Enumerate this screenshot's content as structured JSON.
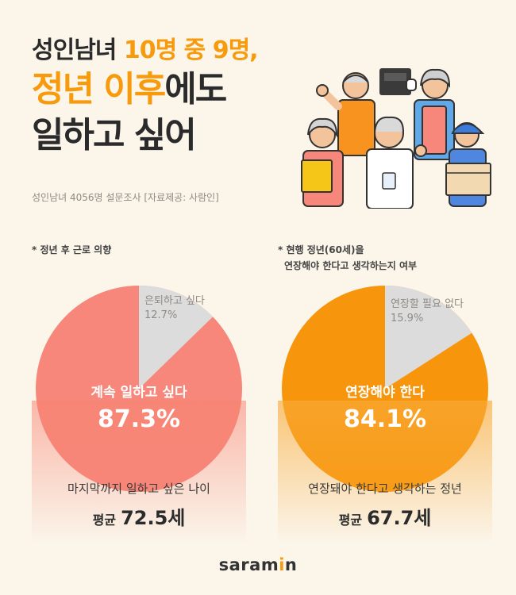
{
  "headline": {
    "line1_a": "성인남녀 ",
    "line1_b": "10명 중 9명,",
    "line2_a": "정년 ",
    "line2_b": "이후",
    "line2_c": "에도",
    "line3": "일하고 싶어"
  },
  "survey_note": "성인남녀 4056명 설문조사  [자료제공: 사람인]",
  "footer_logo": {
    "pre": "saram",
    "dot": "i",
    "post": "n"
  },
  "chart_data": [
    {
      "type": "pie",
      "title": "* 정년 후 근로 의향",
      "slices": [
        {
          "label": "계속 일하고 싶다",
          "value": 87.3,
          "display": "87.3%",
          "color": "#f7877a"
        },
        {
          "label": "은퇴하고 싶다",
          "value": 12.7,
          "display": "12.7%",
          "color": "#dcdcdc"
        }
      ],
      "footer_label": "마지막까지 일하고 싶은 나이",
      "footer_avg_label": "평균",
      "footer_avg_value": "72.5세"
    },
    {
      "type": "pie",
      "title_line1": "* 현행 정년(60세)을",
      "title_line2": "연장해야 한다고 생각하는지 여부",
      "slices": [
        {
          "label": "연장해야 한다",
          "value": 84.1,
          "display": "84.1%",
          "color": "#f7960d"
        },
        {
          "label": "연장할 필요 없다",
          "value": 15.9,
          "display": "15.9%",
          "color": "#dcdcdc"
        }
      ],
      "footer_label": "연장돼야 한다고 생각하는 정년",
      "footer_avg_label": "평균",
      "footer_avg_value": "67.7세"
    }
  ]
}
